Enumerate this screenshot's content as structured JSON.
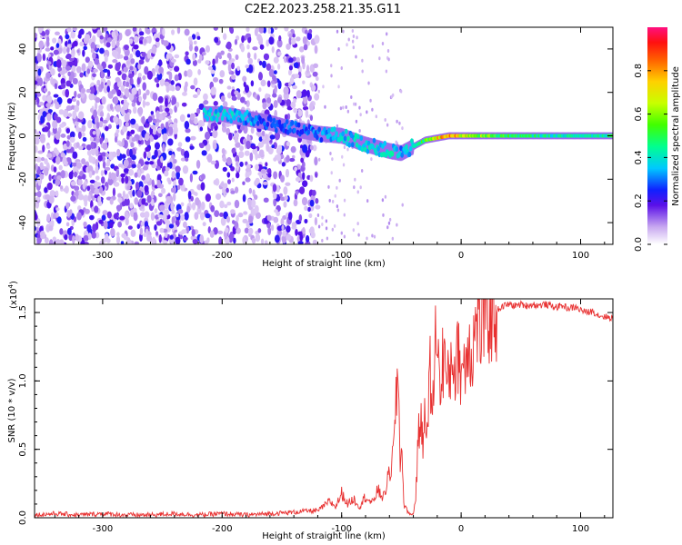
{
  "title": "C2E2.2023.258.21.35.G11",
  "chart_data": [
    {
      "type": "heatmap",
      "xlabel": "Height of straight line (km)",
      "ylabel": "Frequency (Hz)",
      "xlim": [
        -357,
        127
      ],
      "ylim": [
        -50,
        50
      ],
      "x_ticks": [
        "-300",
        "-200",
        "-100",
        "0",
        "100"
      ],
      "x_tick_values": [
        -300,
        -200,
        -100,
        0,
        100
      ],
      "y_ticks": [
        "40",
        "20",
        "0",
        "-20",
        "-40"
      ],
      "y_tick_values": [
        40,
        20,
        0,
        -20,
        -40
      ],
      "colorbar": {
        "label": "Normalized spectral amplitude",
        "range": [
          0,
          1
        ],
        "ticks": [
          "0.0",
          "0.2",
          "0.4",
          "0.6",
          "0.8"
        ],
        "tick_values": [
          0.0,
          0.2,
          0.4,
          0.6,
          0.8
        ]
      },
      "ridge": {
        "x": [
          -215,
          -200,
          -180,
          -160,
          -140,
          -120,
          -100,
          -80,
          -60,
          -50,
          -40,
          -30,
          -20,
          -10,
          0,
          20,
          50,
          80,
          100,
          127
        ],
        "frequency": [
          10,
          10,
          8,
          6,
          3,
          1,
          0,
          -4,
          -7,
          -8,
          -5,
          -2,
          -1,
          0,
          0,
          0,
          0,
          0,
          0,
          0
        ],
        "amplitude": [
          0.4,
          0.4,
          0.35,
          0.3,
          0.3,
          0.32,
          0.38,
          0.4,
          0.42,
          0.35,
          0.4,
          0.55,
          0.75,
          0.85,
          0.75,
          0.6,
          0.5,
          0.45,
          0.45,
          0.5
        ]
      }
    },
    {
      "type": "line",
      "xlabel": "Height of straight line (km)",
      "ylabel": "SNR (10 * v/v)",
      "yscale_label": "(x10",
      "yscale_exp": "4",
      "xlim": [
        -357,
        127
      ],
      "ylim": [
        0,
        1.6
      ],
      "x_ticks": [
        "-300",
        "-200",
        "-100",
        "0",
        "100"
      ],
      "x_tick_values": [
        -300,
        -200,
        -100,
        0,
        100
      ],
      "y_ticks": [
        "0.0",
        "0.5",
        "1.0",
        "1.5"
      ],
      "y_tick_values": [
        0,
        0.5,
        1.0,
        1.5
      ],
      "series": [
        {
          "color": "#e83030",
          "x": [
            -357,
            -340,
            -320,
            -300,
            -280,
            -260,
            -240,
            -220,
            -200,
            -180,
            -160,
            -140,
            -130,
            -120,
            -110,
            -105,
            -100,
            -95,
            -90,
            -85,
            -80,
            -75,
            -70,
            -65,
            -60,
            -57,
            -55,
            -53,
            -51,
            -50,
            -48,
            -45,
            -42,
            -40,
            -38,
            -36,
            -34,
            -32,
            -30,
            -28,
            -26,
            -24,
            -22,
            -20,
            -18,
            -16,
            -14,
            -12,
            -10,
            -8,
            -6,
            -4,
            -2,
            0,
            2,
            4,
            6,
            8,
            10,
            12,
            14,
            16,
            18,
            20,
            22,
            25,
            28,
            32,
            36,
            40,
            45,
            50,
            55,
            60,
            65,
            70,
            75,
            80,
            85,
            90,
            95,
            100,
            105,
            110,
            115,
            120,
            127
          ],
          "y": [
            0.02,
            0.03,
            0.02,
            0.03,
            0.02,
            0.02,
            0.03,
            0.02,
            0.03,
            0.02,
            0.03,
            0.04,
            0.05,
            0.05,
            0.12,
            0.08,
            0.18,
            0.1,
            0.14,
            0.08,
            0.16,
            0.1,
            0.2,
            0.15,
            0.32,
            0.45,
            0.7,
            1.14,
            0.4,
            0.6,
            0.1,
            0.05,
            0.02,
            0.03,
            0.15,
            0.55,
            0.75,
            0.5,
            0.9,
            0.6,
            1.1,
            0.7,
            1.2,
            1.5,
            0.9,
            1.1,
            1.25,
            0.95,
            1.0,
            1.2,
            1.15,
            1.05,
            1.3,
            1.0,
            1.2,
            1.1,
            1.4,
            1.2,
            1.25,
            1.38,
            1.5,
            1.35,
            1.45,
            1.52,
            1.48,
            1.52,
            1.5,
            1.53,
            1.55,
            1.56,
            1.55,
            1.56,
            1.55,
            1.56,
            1.55,
            1.56,
            1.55,
            1.54,
            1.55,
            1.53,
            1.54,
            1.52,
            1.5,
            1.51,
            1.48,
            1.47,
            1.46
          ]
        }
      ]
    }
  ]
}
